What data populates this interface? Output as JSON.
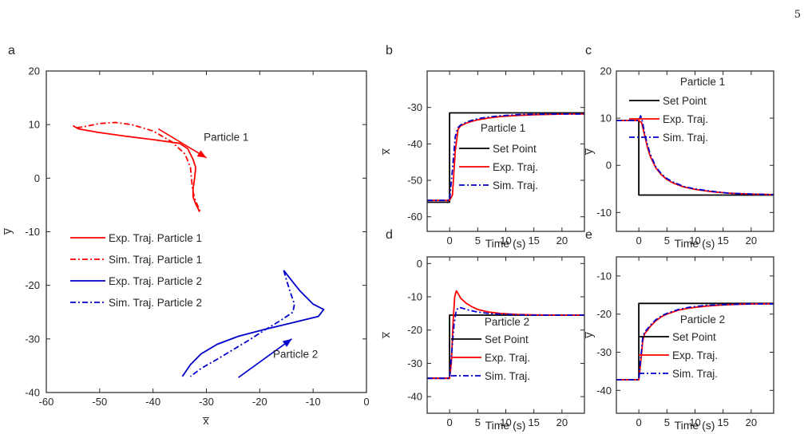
{
  "page_number": "5",
  "colors": {
    "red": "#ff0000",
    "blue": "#0000cc",
    "black": "#000000"
  },
  "chart_data": [
    {
      "id": "a",
      "panel_label": "a",
      "type": "line",
      "xlabel": "x̅",
      "ylabel": "y̅",
      "xlim": [
        -60,
        0
      ],
      "ylim": [
        -40,
        20
      ],
      "xticks": [
        -60,
        -50,
        -40,
        -30,
        -20,
        -10,
        0
      ],
      "yticks": [
        -40,
        -30,
        -20,
        -10,
        0,
        10,
        20
      ],
      "legend_position": "center-left",
      "legend": [
        "Exp. Traj. Particle 1",
        "Sim. Traj. Particle 1",
        "Exp. Traj. Particle 2",
        "Sim. Traj. Particle 2"
      ],
      "series": [
        {
          "name": "Exp. Traj. Particle 1",
          "color": "red",
          "dash": "solid",
          "x": [
            -55.0,
            -54.0,
            -50.0,
            -45.0,
            -40.0,
            -35.0,
            -33.5,
            -32.5,
            -32.0,
            -32.2,
            -32.5,
            -32.5,
            -32.0,
            -31.5,
            -31.3
          ],
          "y": [
            9.8,
            9.2,
            8.5,
            7.8,
            7.2,
            6.5,
            5.5,
            3.5,
            2.0,
            0.0,
            -2.0,
            -3.5,
            -4.8,
            -5.8,
            -6.3
          ]
        },
        {
          "name": "Sim. Traj. Particle 1",
          "color": "red",
          "dash": "dashdot",
          "x": [
            -54.3,
            -53.0,
            -50.0,
            -47.0,
            -44.0,
            -40.0,
            -36.5,
            -34.0,
            -33.0,
            -32.8,
            -32.6,
            -32.2,
            -31.6,
            -31.2
          ],
          "y": [
            9.4,
            9.6,
            10.2,
            10.4,
            10.0,
            8.8,
            6.8,
            4.5,
            2.0,
            0.0,
            -2.0,
            -3.8,
            -5.2,
            -6.1
          ]
        },
        {
          "name": "Exp. Traj. Particle 2",
          "color": "blue",
          "dash": "solid",
          "x": [
            -15.5,
            -14.5,
            -12.5,
            -10.0,
            -8.0,
            -9.0,
            -14.0,
            -19.0,
            -24.0,
            -28.0,
            -31.0,
            -33.0,
            -34.5
          ],
          "y": [
            -17.2,
            -18.5,
            -21.0,
            -23.5,
            -24.5,
            -25.8,
            -27.0,
            -28.2,
            -29.5,
            -31.0,
            -32.8,
            -34.8,
            -37.0
          ]
        },
        {
          "name": "Sim. Traj. Particle 2",
          "color": "blue",
          "dash": "dashdot",
          "x": [
            -15.5,
            -15.0,
            -14.2,
            -13.5,
            -13.8,
            -16.0,
            -19.0,
            -22.0,
            -25.0,
            -28.0,
            -31.0,
            -33.0
          ],
          "y": [
            -17.2,
            -19.0,
            -21.5,
            -23.5,
            -25.0,
            -26.5,
            -28.3,
            -30.2,
            -32.0,
            -33.8,
            -35.5,
            -37.0
          ]
        }
      ],
      "annotations": [
        {
          "text": "Particle 1",
          "x": -30.5,
          "y": 7.0,
          "color": "black"
        },
        {
          "text": "Particle 2",
          "x": -17.5,
          "y": -33.5,
          "color": "black"
        }
      ],
      "arrows": [
        {
          "color": "red",
          "x1": -39.0,
          "y1": 9.2,
          "x2": -30.0,
          "y2": 3.8
        },
        {
          "color": "blue",
          "x1": -24.0,
          "y1": -37.2,
          "x2": -14.0,
          "y2": -30.0
        }
      ]
    },
    {
      "id": "b",
      "panel_label": "b",
      "type": "line",
      "xlabel": "Time (s)",
      "ylabel": "x̅",
      "xlim": [
        -4,
        24
      ],
      "ylim": [
        -64,
        -20
      ],
      "xticks": [
        0,
        5,
        10,
        15,
        20
      ],
      "yticks": [
        -60,
        -50,
        -40,
        -30
      ],
      "legend_title": "Particle 1",
      "legend_position": "center-right",
      "legend": [
        "Set Point",
        "Exp. Traj.",
        "Sim. Traj."
      ],
      "series": [
        {
          "name": "Set Point",
          "color": "black",
          "dash": "solid",
          "x": [
            -4,
            0,
            0,
            24
          ],
          "y": [
            -56,
            -56,
            -31.5,
            -31.5
          ]
        },
        {
          "name": "Exp. Traj.",
          "color": "red",
          "dash": "solid",
          "x": [
            -4,
            0,
            0.5,
            1.0,
            1.5,
            2,
            3,
            4,
            5,
            7,
            9,
            12,
            15,
            18,
            21,
            24
          ],
          "y": [
            -55.5,
            -55.5,
            -54,
            -42,
            -36,
            -35,
            -34.3,
            -33.8,
            -33.4,
            -32.9,
            -32.5,
            -32.2,
            -32.0,
            -31.9,
            -31.8,
            -31.8
          ]
        },
        {
          "name": "Sim. Traj.",
          "color": "blue",
          "dash": "dashdot",
          "x": [
            -4,
            0,
            0.5,
            1.0,
            1.5,
            2,
            3,
            4,
            5,
            7,
            9,
            12,
            15,
            18,
            21,
            24
          ],
          "y": [
            -55.5,
            -55.5,
            -47,
            -38,
            -35.5,
            -34.8,
            -34.0,
            -33.5,
            -33.1,
            -32.6,
            -32.3,
            -32.0,
            -31.9,
            -31.8,
            -31.8,
            -31.8
          ]
        }
      ]
    },
    {
      "id": "c",
      "panel_label": "c",
      "type": "line",
      "xlabel": "Time (s)",
      "ylabel": "y̅",
      "xlim": [
        -4,
        24
      ],
      "ylim": [
        -14,
        20
      ],
      "xticks": [
        0,
        5,
        10,
        15,
        20
      ],
      "yticks": [
        -10,
        0,
        10,
        20
      ],
      "legend_title": "Particle 1",
      "legend_position": "top-right",
      "legend": [
        "Set Point",
        "Exp. Traj.",
        "Sim. Traj."
      ],
      "series": [
        {
          "name": "Set Point",
          "color": "black",
          "dash": "solid",
          "x": [
            -4,
            0,
            0,
            24
          ],
          "y": [
            9.5,
            9.5,
            -6.3,
            -6.3
          ]
        },
        {
          "name": "Exp. Traj.",
          "color": "red",
          "dash": "solid",
          "x": [
            -4,
            0,
            0.5,
            1,
            1.5,
            2,
            3,
            4,
            5,
            6,
            8,
            10,
            13,
            16,
            20,
            24
          ],
          "y": [
            9.5,
            9.5,
            9.0,
            6.5,
            4.0,
            2.0,
            -0.5,
            -2.0,
            -3.0,
            -3.7,
            -4.6,
            -5.1,
            -5.6,
            -5.9,
            -6.1,
            -6.2
          ]
        },
        {
          "name": "Sim. Traj.",
          "color": "blue",
          "dash": "dashdot",
          "x": [
            -4,
            0,
            0.3,
            0.5,
            1,
            1.5,
            2,
            3,
            4,
            5,
            6,
            8,
            10,
            13,
            16,
            20,
            24
          ],
          "y": [
            9.5,
            9.5,
            10.5,
            10.0,
            7.0,
            4.5,
            2.5,
            -0.3,
            -1.8,
            -2.8,
            -3.5,
            -4.5,
            -5.0,
            -5.5,
            -5.9,
            -6.1,
            -6.2
          ]
        }
      ]
    },
    {
      "id": "d",
      "panel_label": "d",
      "type": "line",
      "xlabel": "Time (s)",
      "ylabel": "x̅",
      "xlim": [
        -4,
        24
      ],
      "ylim": [
        -45,
        2
      ],
      "xticks": [
        0,
        5,
        10,
        15,
        20
      ],
      "yticks": [
        -40,
        -30,
        -20,
        -10,
        0
      ],
      "legend_title": "Particle 2",
      "legend_position": "bottom-right",
      "legend": [
        "Set Point",
        "Exp. Traj.",
        "Sim. Traj."
      ],
      "series": [
        {
          "name": "Set Point",
          "color": "black",
          "dash": "solid",
          "x": [
            -4,
            0,
            0,
            24
          ],
          "y": [
            -34.5,
            -34.5,
            -15.5,
            -15.5
          ]
        },
        {
          "name": "Exp. Traj.",
          "color": "red",
          "dash": "solid",
          "x": [
            -4,
            0,
            0.3,
            0.6,
            0.9,
            1.2,
            1.5,
            2,
            3,
            4,
            5,
            7,
            9,
            12,
            15,
            18,
            21,
            24
          ],
          "y": [
            -34.5,
            -34.5,
            -30,
            -18,
            -10,
            -8.2,
            -9.0,
            -10.5,
            -12.0,
            -13.0,
            -13.8,
            -14.6,
            -15.0,
            -15.3,
            -15.4,
            -15.5,
            -15.5,
            -15.5
          ]
        },
        {
          "name": "Sim. Traj.",
          "color": "blue",
          "dash": "dashdot",
          "x": [
            -4,
            0,
            0.4,
            0.8,
            1.2,
            1.6,
            2,
            3,
            4,
            5,
            7,
            9,
            12,
            15,
            18,
            24
          ],
          "y": [
            -34.5,
            -34.5,
            -26,
            -18,
            -14,
            -13.2,
            -13.3,
            -13.8,
            -14.2,
            -14.6,
            -15.0,
            -15.2,
            -15.4,
            -15.5,
            -15.5,
            -15.5
          ]
        }
      ]
    },
    {
      "id": "e",
      "panel_label": "e",
      "type": "line",
      "xlabel": "Time (s)",
      "ylabel": "y̅",
      "xlim": [
        -4,
        24
      ],
      "ylim": [
        -46,
        -5
      ],
      "xticks": [
        0,
        5,
        10,
        15,
        20
      ],
      "yticks": [
        -40,
        -30,
        -20,
        -10
      ],
      "legend_title": "Particle 2",
      "legend_position": "bottom-right",
      "legend": [
        "Set Point",
        "Exp. Traj.",
        "Sim. Traj."
      ],
      "series": [
        {
          "name": "Set Point",
          "color": "black",
          "dash": "solid",
          "x": [
            -4,
            0,
            0,
            24
          ],
          "y": [
            -37.2,
            -37.2,
            -17.2,
            -17.2
          ]
        },
        {
          "name": "Exp. Traj.",
          "color": "red",
          "dash": "solid",
          "x": [
            -4,
            0,
            0.3,
            0.7,
            1,
            1.5,
            2,
            3,
            4,
            5,
            7,
            9,
            12,
            15,
            18,
            21,
            24
          ],
          "y": [
            -37.2,
            -37.2,
            -33,
            -27,
            -25.2,
            -24.3,
            -23.3,
            -21.8,
            -20.7,
            -20.0,
            -19.0,
            -18.4,
            -17.9,
            -17.6,
            -17.4,
            -17.3,
            -17.3
          ]
        },
        {
          "name": "Sim. Traj.",
          "color": "blue",
          "dash": "dashdot",
          "x": [
            -4,
            0,
            0.3,
            0.7,
            1,
            1.5,
            2,
            3,
            4,
            5,
            7,
            9,
            12,
            15,
            18,
            21,
            24
          ],
          "y": [
            -37.2,
            -37.2,
            -32,
            -26,
            -24.8,
            -23.9,
            -23.0,
            -21.5,
            -20.5,
            -19.8,
            -18.8,
            -18.2,
            -17.7,
            -17.5,
            -17.4,
            -17.3,
            -17.3
          ]
        }
      ]
    }
  ]
}
